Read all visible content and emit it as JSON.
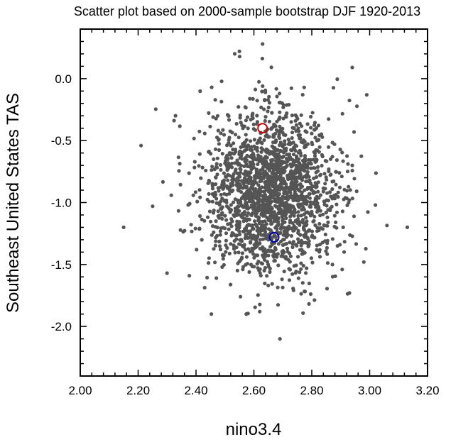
{
  "chart_data": {
    "type": "scatter",
    "title": "Scatter plot based on 2000-sample bootstrap DJF 1920-2013",
    "xlabel": "nino3.4",
    "ylabel": "Southeast United States TAS",
    "xlim": [
      2.0,
      3.2
    ],
    "ylim": [
      -2.4,
      0.4
    ],
    "xticks": [
      2.0,
      2.2,
      2.4,
      2.6,
      2.8,
      3.0,
      3.2
    ],
    "xtick_labels": [
      "2.00",
      "2.20",
      "2.40",
      "2.60",
      "2.80",
      "3.00",
      "3.20"
    ],
    "yticks": [
      0.0,
      -0.5,
      -1.0,
      -1.5,
      -2.0
    ],
    "ytick_labels": [
      "0.0",
      "-0.5",
      "-1.0",
      "-1.5",
      "-2.0"
    ],
    "grid": false,
    "n_samples": 2000,
    "distribution": {
      "x_mean": 2.66,
      "x_sd": 0.115,
      "y_mean": -0.92,
      "y_sd": 0.33,
      "seed": 20130
    },
    "outlier_points": [
      {
        "x": 2.15,
        "y": -1.2
      },
      {
        "x": 3.13,
        "y": -1.2
      },
      {
        "x": 2.69,
        "y": -2.1
      },
      {
        "x": 2.63,
        "y": 0.28
      },
      {
        "x": 2.55,
        "y": 0.22
      },
      {
        "x": 2.21,
        "y": -0.54
      },
      {
        "x": 2.25,
        "y": -1.03
      },
      {
        "x": 3.02,
        "y": -1.02
      },
      {
        "x": 2.94,
        "y": 0.09
      },
      {
        "x": 2.99,
        "y": -0.13
      },
      {
        "x": 2.3,
        "y": -1.57
      },
      {
        "x": 2.93,
        "y": -1.73
      },
      {
        "x": 2.98,
        "y": -1.48
      },
      {
        "x": 2.62,
        "y": -1.88
      }
    ],
    "point_color": "#555555",
    "highlight_points": [
      {
        "name": "observed-red",
        "x": 2.63,
        "y": -0.4,
        "color": "#cc0000"
      },
      {
        "name": "observed-blue",
        "x": 2.67,
        "y": -1.28,
        "color": "#0000aa"
      }
    ]
  }
}
